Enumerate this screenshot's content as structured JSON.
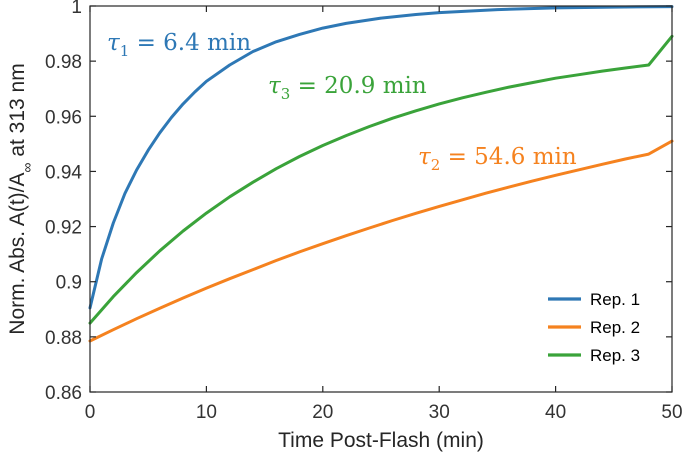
{
  "chart_data": {
    "type": "line",
    "xlabel": "Time Post-Flash (min)",
    "ylabel": {
      "prefix": "Norm. Abs. A(t)/A",
      "subscript": "∞",
      "suffix": " at 313 nm"
    },
    "xlim": [
      0,
      50
    ],
    "ylim": [
      0.86,
      1.0
    ],
    "xticks": [
      0,
      10,
      20,
      30,
      40,
      50
    ],
    "yticks": [
      0.86,
      0.88,
      0.9,
      0.92,
      0.94,
      0.96,
      0.98,
      1
    ],
    "xtick_labels": [
      "0",
      "10",
      "20",
      "30",
      "40",
      "50"
    ],
    "ytick_labels": [
      "0.86",
      "0.88",
      "0.9",
      "0.92",
      "0.94",
      "0.96",
      "0.98",
      "1"
    ],
    "grid": false,
    "legend_position": "bottom-right",
    "series": [
      {
        "name": "Rep. 1",
        "color": "#2E78B5",
        "x": [
          0,
          1,
          2,
          3,
          4,
          5,
          6,
          7,
          8,
          9,
          10,
          12,
          14,
          16,
          18,
          20,
          22,
          25,
          28,
          30,
          35,
          40,
          45,
          50
        ],
        "y": [
          0.8905,
          0.9082,
          0.9213,
          0.932,
          0.9405,
          0.9477,
          0.954,
          0.9596,
          0.9645,
          0.9688,
          0.9727,
          0.9786,
          0.9835,
          0.987,
          0.9897,
          0.992,
          0.9937,
          0.9956,
          0.9969,
          0.9976,
          0.9987,
          0.9993,
          0.9996,
          0.9998
        ]
      },
      {
        "name": "Rep. 2",
        "color": "#F5821F",
        "x": [
          0,
          2,
          4,
          6,
          8,
          10,
          12,
          14,
          16,
          18,
          20,
          22,
          24,
          26,
          28,
          30,
          32,
          34,
          36,
          38,
          40,
          42,
          44,
          46,
          48,
          50
        ],
        "y": [
          0.8785,
          0.8826,
          0.8866,
          0.8904,
          0.8941,
          0.8977,
          0.9011,
          0.9044,
          0.9077,
          0.9108,
          0.9138,
          0.9167,
          0.9195,
          0.9222,
          0.9248,
          0.9273,
          0.9297,
          0.9321,
          0.9343,
          0.9365,
          0.9386,
          0.9406,
          0.9426,
          0.9445,
          0.9463,
          0.951
        ]
      },
      {
        "name": "Rep. 3",
        "color": "#3AA33A",
        "x": [
          0,
          2,
          4,
          6,
          8,
          10,
          12,
          14,
          16,
          18,
          20,
          22,
          24,
          26,
          28,
          30,
          32,
          34,
          36,
          38,
          40,
          42,
          44,
          46,
          48,
          50
        ],
        "y": [
          0.885,
          0.8946,
          0.9033,
          0.9112,
          0.9184,
          0.9249,
          0.9308,
          0.9361,
          0.941,
          0.9454,
          0.9494,
          0.953,
          0.9563,
          0.9593,
          0.962,
          0.9645,
          0.9667,
          0.9687,
          0.9706,
          0.9722,
          0.9738,
          0.9751,
          0.9764,
          0.9775,
          0.9786,
          0.989
        ]
      }
    ],
    "annotations": [
      {
        "symbol": "τ",
        "sub": "1",
        "text": " = 6.4 min",
        "color": "#2E78B5"
      },
      {
        "symbol": "τ",
        "sub": "3",
        "text": " = 20.9 min",
        "color": "#3AA33A"
      },
      {
        "symbol": "τ",
        "sub": "2",
        "text": " = 54.6 min",
        "color": "#F5821F"
      }
    ]
  }
}
